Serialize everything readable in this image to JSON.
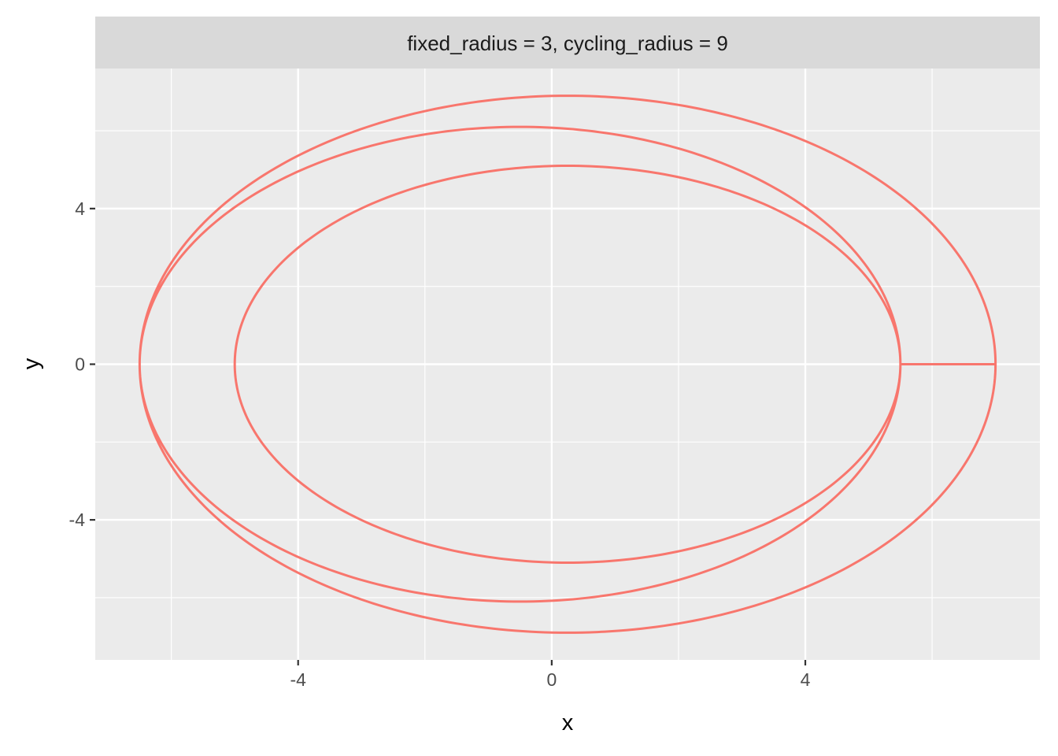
{
  "chart_data": {
    "type": "line",
    "facet_label": "fixed_radius = 3, cycling_radius = 9",
    "xlabel": "x",
    "ylabel": "y",
    "xlim": [
      -7.2,
      7.7
    ],
    "ylim": [
      -7.6,
      7.6
    ],
    "x_ticks": [
      -4,
      0,
      4
    ],
    "y_ticks": [
      -4,
      0,
      4
    ],
    "x_tick_labels": [
      "-4",
      "0",
      "4"
    ],
    "y_tick_labels": [
      "-4",
      "0",
      "4"
    ],
    "grid": true,
    "legend": "none",
    "curve": {
      "kind": "hypotrochoid-like closed curve",
      "loops": 3,
      "extent": {
        "x_min": -6.5,
        "x_max": 7.0,
        "y_min": -6.9,
        "y_max": 6.9
      },
      "crossings_at_y0": [
        -6.5,
        -5.0,
        5.5,
        7.0
      ],
      "peaks_y": [
        6.9,
        6.1,
        5.1
      ]
    },
    "colors": {
      "line": "#F8766D",
      "panel": "#EBEBEB",
      "strip": "#D9D9D9",
      "grid": "#FFFFFF"
    }
  }
}
